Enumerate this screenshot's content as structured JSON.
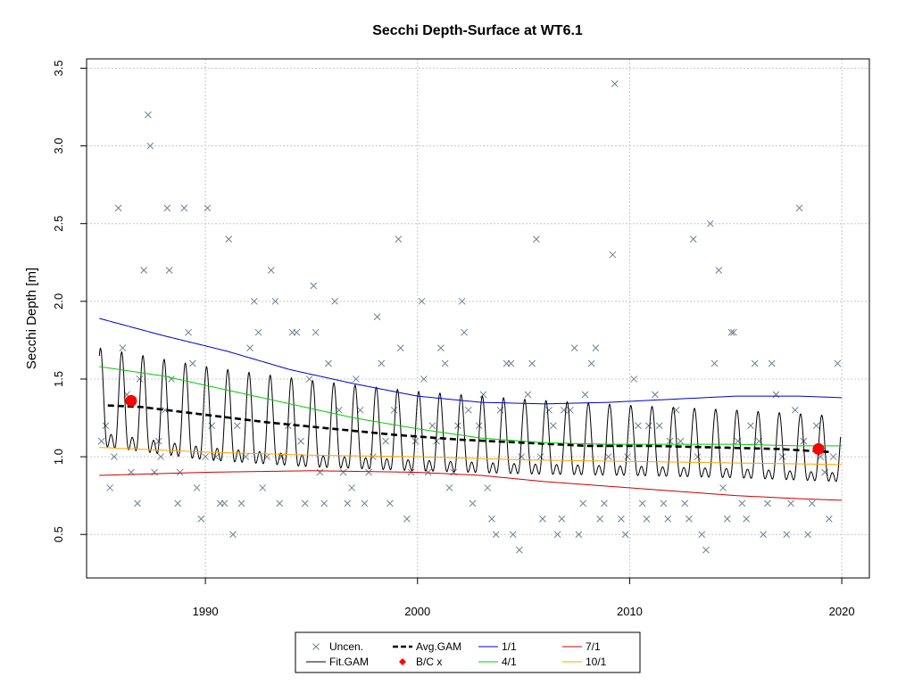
{
  "chart_data": {
    "type": "line",
    "title": "Secchi Depth-Surface at WT6.1",
    "xlabel": "",
    "ylabel": "Secchi Depth [m]",
    "xlim": [
      1984.4,
      2021.3
    ],
    "ylim": [
      0.22,
      3.56
    ],
    "x_ticks": [
      1990,
      2000,
      2010,
      2020
    ],
    "y_ticks": [
      0.5,
      1.0,
      1.5,
      2.0,
      2.5,
      3.0,
      3.5
    ],
    "x_tick_labels": [
      "1990",
      "2000",
      "2010",
      "2020"
    ],
    "y_tick_labels": [
      "0.5",
      "1.0",
      "1.5",
      "2.0",
      "2.5",
      "3.0",
      "3.5"
    ],
    "grid": true,
    "legend_position": "bottom-center",
    "legend": [
      {
        "label": "Uncen.",
        "symbol": "x",
        "color": "#708090"
      },
      {
        "label": "Fit.GAM",
        "symbol": "line",
        "color": "#000000"
      },
      {
        "label": "Avg.GAM",
        "symbol": "dashed",
        "color": "#000000"
      },
      {
        "label": "B/C x",
        "symbol": "diamond",
        "color": "#ff0000"
      },
      {
        "label": "1/1",
        "symbol": "line",
        "color": "#0000cd"
      },
      {
        "label": "4/1",
        "symbol": "line",
        "color": "#00cd00"
      },
      {
        "label": "7/1",
        "symbol": "line",
        "color": "#cd0000"
      },
      {
        "label": "10/1",
        "symbol": "line",
        "color": "#ffa500"
      }
    ],
    "observations": [
      [
        1985.1,
        1.1
      ],
      [
        1985.3,
        1.2
      ],
      [
        1985.5,
        0.8
      ],
      [
        1985.7,
        1.0
      ],
      [
        1985.9,
        2.6
      ],
      [
        1986.1,
        1.7
      ],
      [
        1986.3,
        1.4
      ],
      [
        1986.5,
        0.9
      ],
      [
        1986.8,
        0.7
      ],
      [
        1986.9,
        1.5
      ],
      [
        1987.1,
        2.2
      ],
      [
        1987.3,
        3.2
      ],
      [
        1987.4,
        3.0
      ],
      [
        1987.6,
        0.9
      ],
      [
        1987.8,
        1.1
      ],
      [
        1987.9,
        1.0
      ],
      [
        1988.1,
        1.3
      ],
      [
        1988.2,
        2.6
      ],
      [
        1988.3,
        2.2
      ],
      [
        1988.4,
        1.5
      ],
      [
        1988.7,
        0.7
      ],
      [
        1988.8,
        0.9
      ],
      [
        1989.0,
        2.6
      ],
      [
        1989.2,
        1.8
      ],
      [
        1989.4,
        1.6
      ],
      [
        1989.6,
        0.8
      ],
      [
        1989.8,
        0.6
      ],
      [
        1990.0,
        1.0
      ],
      [
        1990.1,
        2.6
      ],
      [
        1990.3,
        1.2
      ],
      [
        1990.5,
        1.0
      ],
      [
        1990.7,
        0.7
      ],
      [
        1990.9,
        0.7
      ],
      [
        1991.1,
        2.4
      ],
      [
        1991.3,
        0.5
      ],
      [
        1991.5,
        1.2
      ],
      [
        1991.7,
        0.7
      ],
      [
        1991.9,
        1.0
      ],
      [
        1992.1,
        1.7
      ],
      [
        1992.3,
        2.0
      ],
      [
        1992.5,
        1.8
      ],
      [
        1992.7,
        0.8
      ],
      [
        1992.9,
        1.0
      ],
      [
        1993.1,
        2.2
      ],
      [
        1993.3,
        2.0
      ],
      [
        1993.5,
        0.7
      ],
      [
        1993.6,
        1.0
      ],
      [
        1993.9,
        1.2
      ],
      [
        1994.1,
        1.8
      ],
      [
        1994.3,
        1.8
      ],
      [
        1994.5,
        1.1
      ],
      [
        1994.7,
        0.7
      ],
      [
        1994.9,
        1.5
      ],
      [
        1995.1,
        2.1
      ],
      [
        1995.2,
        1.8
      ],
      [
        1995.4,
        0.9
      ],
      [
        1995.6,
        0.7
      ],
      [
        1995.8,
        1.6
      ],
      [
        1996.1,
        2.0
      ],
      [
        1996.3,
        1.3
      ],
      [
        1996.5,
        0.9
      ],
      [
        1996.7,
        0.7
      ],
      [
        1996.9,
        0.8
      ],
      [
        1997.1,
        1.5
      ],
      [
        1997.3,
        1.3
      ],
      [
        1997.5,
        0.7
      ],
      [
        1997.7,
        0.9
      ],
      [
        1997.9,
        1.0
      ],
      [
        1998.1,
        1.9
      ],
      [
        1998.3,
        1.6
      ],
      [
        1998.5,
        1.1
      ],
      [
        1998.7,
        0.7
      ],
      [
        1998.9,
        1.3
      ],
      [
        1999.1,
        2.4
      ],
      [
        1999.2,
        1.7
      ],
      [
        1999.5,
        0.6
      ],
      [
        1999.7,
        0.9
      ],
      [
        1999.9,
        1.1
      ],
      [
        2000.2,
        2.0
      ],
      [
        2000.3,
        1.5
      ],
      [
        2000.5,
        0.9
      ],
      [
        2000.7,
        1.2
      ],
      [
        2000.9,
        1.1
      ],
      [
        2001.1,
        1.7
      ],
      [
        2001.3,
        1.6
      ],
      [
        2001.5,
        0.8
      ],
      [
        2001.7,
        0.9
      ],
      [
        2001.9,
        1.2
      ],
      [
        2002.1,
        2.0
      ],
      [
        2002.2,
        1.8
      ],
      [
        2002.4,
        1.3
      ],
      [
        2002.6,
        0.7
      ],
      [
        2002.9,
        1.2
      ],
      [
        2003.1,
        1.4
      ],
      [
        2003.3,
        0.8
      ],
      [
        2003.5,
        0.6
      ],
      [
        2003.7,
        0.5
      ],
      [
        2003.9,
        1.3
      ],
      [
        2004.2,
        1.6
      ],
      [
        2004.4,
        1.6
      ],
      [
        2004.5,
        0.5
      ],
      [
        2004.8,
        0.4
      ],
      [
        2004.9,
        1.0
      ],
      [
        2005.2,
        1.4
      ],
      [
        2005.4,
        1.6
      ],
      [
        2005.6,
        2.4
      ],
      [
        2005.8,
        1.0
      ],
      [
        2005.9,
        0.6
      ],
      [
        2006.2,
        1.3
      ],
      [
        2006.4,
        1.2
      ],
      [
        2006.6,
        0.5
      ],
      [
        2006.8,
        0.6
      ],
      [
        2006.9,
        1.3
      ],
      [
        2007.2,
        1.3
      ],
      [
        2007.4,
        1.7
      ],
      [
        2007.6,
        0.5
      ],
      [
        2007.8,
        0.7
      ],
      [
        2007.9,
        1.4
      ],
      [
        2008.2,
        1.6
      ],
      [
        2008.4,
        1.7
      ],
      [
        2008.6,
        0.6
      ],
      [
        2008.8,
        0.7
      ],
      [
        2009.0,
        1.0
      ],
      [
        2009.2,
        2.3
      ],
      [
        2009.3,
        3.4
      ],
      [
        2009.6,
        0.6
      ],
      [
        2009.8,
        0.5
      ],
      [
        2009.9,
        1.0
      ],
      [
        2010.2,
        1.5
      ],
      [
        2010.4,
        1.2
      ],
      [
        2010.6,
        0.7
      ],
      [
        2010.8,
        0.6
      ],
      [
        2010.9,
        1.2
      ],
      [
        2011.2,
        1.4
      ],
      [
        2011.4,
        1.2
      ],
      [
        2011.6,
        0.7
      ],
      [
        2011.8,
        0.6
      ],
      [
        2011.9,
        1.1
      ],
      [
        2012.2,
        1.3
      ],
      [
        2012.4,
        1.1
      ],
      [
        2012.6,
        0.7
      ],
      [
        2012.8,
        0.6
      ],
      [
        2013.0,
        2.4
      ],
      [
        2013.2,
        1.0
      ],
      [
        2013.4,
        0.5
      ],
      [
        2013.6,
        0.4
      ],
      [
        2013.8,
        2.5
      ],
      [
        2014.0,
        1.6
      ],
      [
        2014.2,
        2.2
      ],
      [
        2014.4,
        0.8
      ],
      [
        2014.6,
        0.6
      ],
      [
        2014.8,
        1.8
      ],
      [
        2014.9,
        1.8
      ],
      [
        2015.1,
        1.1
      ],
      [
        2015.3,
        0.7
      ],
      [
        2015.5,
        0.6
      ],
      [
        2015.7,
        1.2
      ],
      [
        2015.9,
        1.6
      ],
      [
        2016.1,
        1.1
      ],
      [
        2016.3,
        0.5
      ],
      [
        2016.5,
        0.7
      ],
      [
        2016.7,
        1.6
      ],
      [
        2016.9,
        1.4
      ],
      [
        2017.2,
        1.0
      ],
      [
        2017.4,
        0.5
      ],
      [
        2017.6,
        0.7
      ],
      [
        2017.8,
        1.3
      ],
      [
        2018.0,
        2.6
      ],
      [
        2018.2,
        1.1
      ],
      [
        2018.4,
        0.5
      ],
      [
        2018.6,
        0.7
      ],
      [
        2018.8,
        1.2
      ],
      [
        2019.0,
        1.0
      ],
      [
        2019.2,
        0.9
      ],
      [
        2019.4,
        0.6
      ],
      [
        2019.6,
        1.0
      ],
      [
        2019.8,
        1.6
      ]
    ],
    "series": [
      {
        "name": "Fit.GAM",
        "color": "#000000",
        "style": "solid",
        "seasonal_mean": [
          [
            1985.0,
            1.28
          ],
          [
            1987.0,
            1.24
          ],
          [
            1990.0,
            1.18
          ],
          [
            1995.0,
            1.12
          ],
          [
            2000.0,
            1.08
          ],
          [
            2005.0,
            1.05
          ],
          [
            2010.0,
            1.03
          ],
          [
            2015.0,
            1.01
          ],
          [
            2020.0,
            0.98
          ]
        ],
        "seasonal_amplitude": [
          [
            1985.0,
            0.42
          ],
          [
            1990.0,
            0.4
          ],
          [
            1995.0,
            0.37
          ],
          [
            2000.0,
            0.34
          ],
          [
            2005.0,
            0.32
          ],
          [
            2010.0,
            0.3
          ],
          [
            2015.0,
            0.29
          ],
          [
            2020.0,
            0.28
          ]
        ],
        "x_range": [
          1985.0,
          2019.95
        ]
      },
      {
        "name": "Avg.GAM",
        "color": "#000000",
        "style": "dashed",
        "points": [
          [
            1985.4,
            1.33
          ],
          [
            1987.0,
            1.32
          ],
          [
            1990.0,
            1.27
          ],
          [
            1993.0,
            1.22
          ],
          [
            1996.0,
            1.18
          ],
          [
            1999.0,
            1.14
          ],
          [
            2002.0,
            1.11
          ],
          [
            2005.0,
            1.09
          ],
          [
            2008.0,
            1.07
          ],
          [
            2011.0,
            1.07
          ],
          [
            2014.0,
            1.06
          ],
          [
            2017.0,
            1.05
          ],
          [
            2019.5,
            1.03
          ]
        ]
      },
      {
        "name": "1/1",
        "color": "#0000cd",
        "style": "solid",
        "points": [
          [
            1985.0,
            1.89
          ],
          [
            1988.0,
            1.78
          ],
          [
            1991.0,
            1.68
          ],
          [
            1994.0,
            1.56
          ],
          [
            1997.0,
            1.47
          ],
          [
            2000.0,
            1.39
          ],
          [
            2003.0,
            1.35
          ],
          [
            2006.0,
            1.34
          ],
          [
            2009.0,
            1.35
          ],
          [
            2012.0,
            1.37
          ],
          [
            2015.0,
            1.39
          ],
          [
            2018.0,
            1.39
          ],
          [
            2020.0,
            1.38
          ]
        ]
      },
      {
        "name": "4/1",
        "color": "#00cd00",
        "style": "solid",
        "points": [
          [
            1985.0,
            1.58
          ],
          [
            1988.0,
            1.52
          ],
          [
            1991.0,
            1.43
          ],
          [
            1994.0,
            1.34
          ],
          [
            1997.0,
            1.25
          ],
          [
            2000.0,
            1.18
          ],
          [
            2003.0,
            1.12
          ],
          [
            2006.0,
            1.09
          ],
          [
            2009.0,
            1.08
          ],
          [
            2012.0,
            1.08
          ],
          [
            2015.0,
            1.08
          ],
          [
            2018.0,
            1.07
          ],
          [
            2020.0,
            1.07
          ]
        ]
      },
      {
        "name": "7/1",
        "color": "#cd0000",
        "style": "solid",
        "points": [
          [
            1985.0,
            0.88
          ],
          [
            1990.0,
            0.9
          ],
          [
            1995.0,
            0.91
          ],
          [
            2000.0,
            0.9
          ],
          [
            2003.0,
            0.88
          ],
          [
            2006.0,
            0.84
          ],
          [
            2009.0,
            0.81
          ],
          [
            2012.0,
            0.78
          ],
          [
            2015.0,
            0.75
          ],
          [
            2018.0,
            0.73
          ],
          [
            2020.0,
            0.72
          ]
        ]
      },
      {
        "name": "10/1",
        "color": "#ffa500",
        "style": "solid",
        "points": [
          [
            1985.0,
            1.06
          ],
          [
            1990.0,
            1.03
          ],
          [
            1995.0,
            1.01
          ],
          [
            2000.0,
            1.0
          ],
          [
            2005.0,
            0.98
          ],
          [
            2010.0,
            0.97
          ],
          [
            2015.0,
            0.96
          ],
          [
            2020.0,
            0.95
          ]
        ]
      },
      {
        "name": "B/C x",
        "color": "#ff0000",
        "style": "marker",
        "points": [
          [
            1986.5,
            1.36
          ],
          [
            2018.9,
            1.05
          ]
        ]
      }
    ]
  }
}
